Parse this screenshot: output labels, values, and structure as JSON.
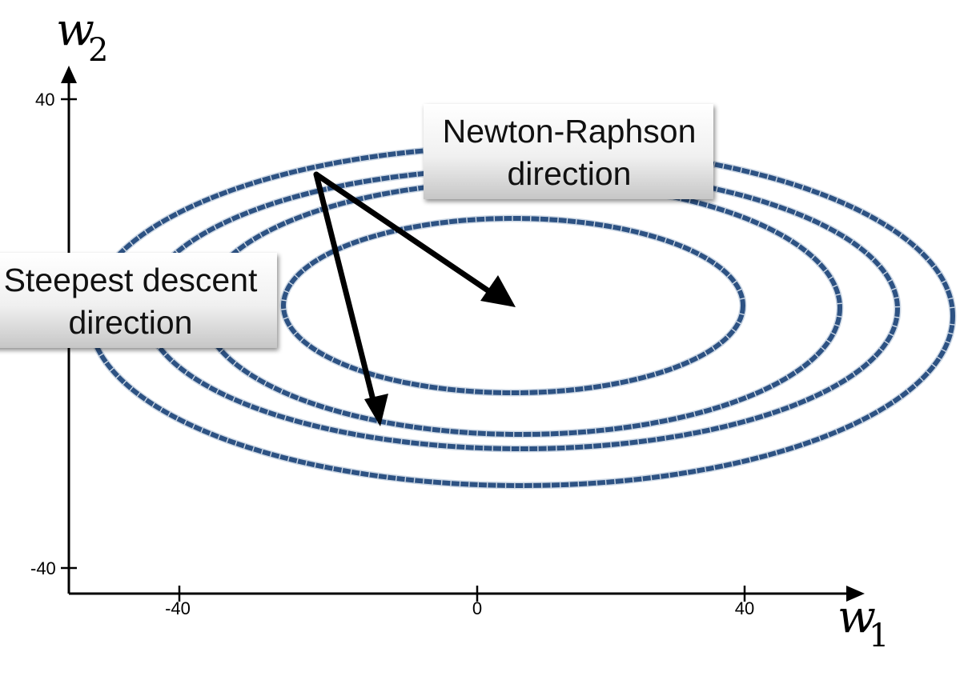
{
  "axes": {
    "x_var": "w",
    "x_sub": "1",
    "y_var": "w",
    "y_sub": "2",
    "x_ticks": [
      "-40",
      "0",
      "40"
    ],
    "y_ticks": [
      "40",
      "-40"
    ]
  },
  "callouts": {
    "newton_line1": "Newton-Raphson",
    "newton_line2": "direction",
    "steepest_line1": "Steepest descent",
    "steepest_line2": "direction"
  },
  "colors": {
    "contour": "#2d5283",
    "axis": "#000000",
    "arrow": "#000000",
    "callout_top": "#ffffff",
    "callout_bottom": "#c9c9c9"
  }
}
